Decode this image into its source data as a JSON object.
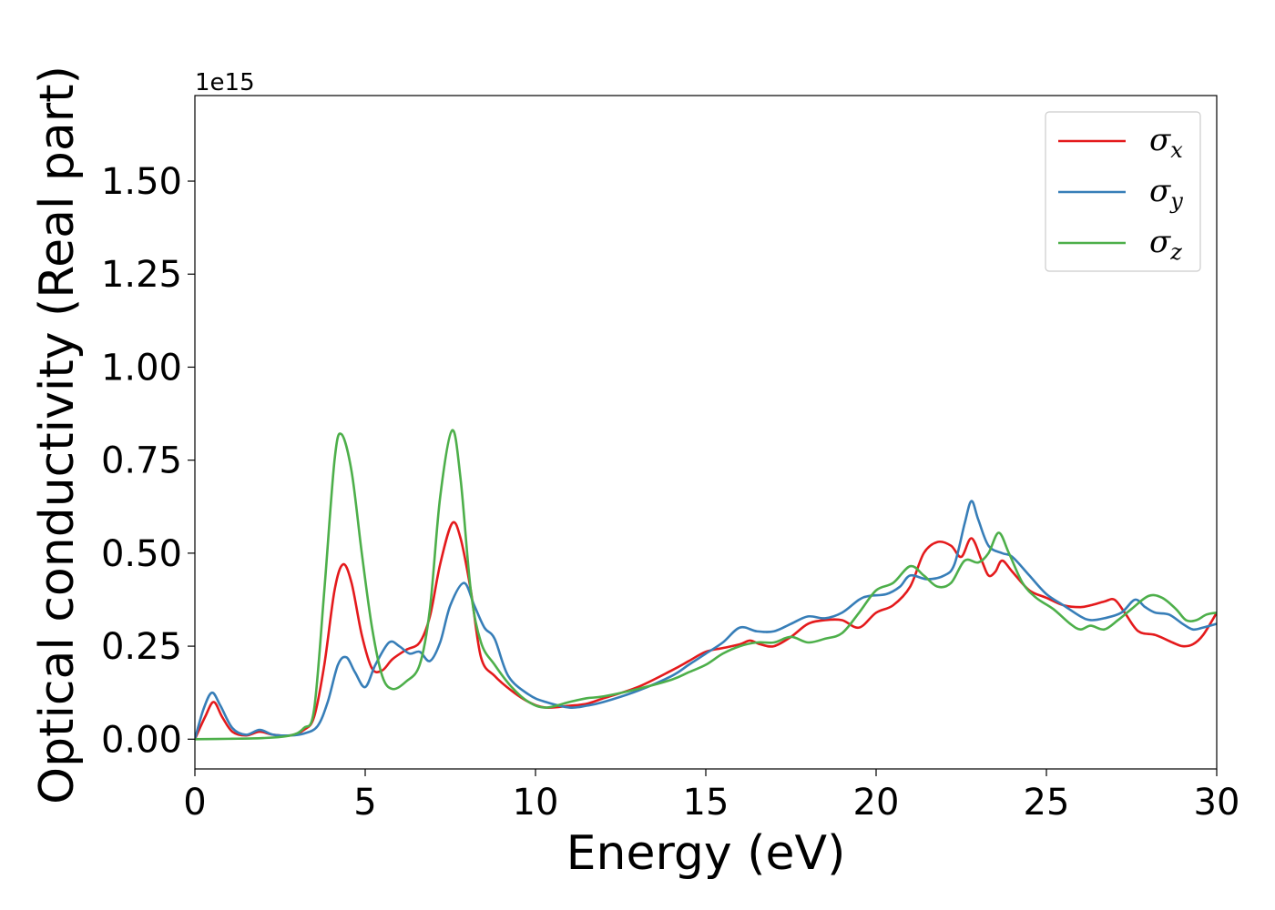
{
  "chart_data": {
    "type": "line",
    "xlabel": "Energy (eV)",
    "ylabel": "Optical conductivity (Real part)",
    "y_offset_label": "1e15",
    "y_scale_factor": 1000000000000000.0,
    "xlim": [
      0,
      30
    ],
    "ylim": [
      -0.08,
      1.73
    ],
    "xticks": [
      0,
      5,
      10,
      15,
      20,
      25,
      30
    ],
    "xtick_labels": [
      "0",
      "5",
      "10",
      "15",
      "20",
      "25",
      "30"
    ],
    "yticks": [
      0.0,
      0.25,
      0.5,
      0.75,
      1.0,
      1.25,
      1.5
    ],
    "ytick_labels": [
      "0.00",
      "0.25",
      "0.50",
      "0.75",
      "1.00",
      "1.25",
      "1.50"
    ],
    "grid": false,
    "legend_position": "top-right",
    "series": [
      {
        "name": "σx",
        "symbol": "σ",
        "subscript": "x",
        "color": "#e41a1c",
        "points": [
          [
            0,
            0
          ],
          [
            0.3,
            0.06
          ],
          [
            0.55,
            0.1
          ],
          [
            0.8,
            0.06
          ],
          [
            1.1,
            0.02
          ],
          [
            1.5,
            0.01
          ],
          [
            1.9,
            0.02
          ],
          [
            2.3,
            0.012
          ],
          [
            2.8,
            0.01
          ],
          [
            3.2,
            0.025
          ],
          [
            3.5,
            0.06
          ],
          [
            3.8,
            0.2
          ],
          [
            4.1,
            0.4
          ],
          [
            4.35,
            0.47
          ],
          [
            4.6,
            0.42
          ],
          [
            4.9,
            0.28
          ],
          [
            5.2,
            0.19
          ],
          [
            5.5,
            0.185
          ],
          [
            5.8,
            0.215
          ],
          [
            6.2,
            0.24
          ],
          [
            6.6,
            0.26
          ],
          [
            6.9,
            0.33
          ],
          [
            7.2,
            0.47
          ],
          [
            7.55,
            0.58
          ],
          [
            7.8,
            0.54
          ],
          [
            8.1,
            0.4
          ],
          [
            8.4,
            0.22
          ],
          [
            8.8,
            0.17
          ],
          [
            9.3,
            0.13
          ],
          [
            9.8,
            0.1
          ],
          [
            10.3,
            0.085
          ],
          [
            11,
            0.09
          ],
          [
            11.5,
            0.095
          ],
          [
            12,
            0.11
          ],
          [
            13,
            0.14
          ],
          [
            14,
            0.185
          ],
          [
            14.5,
            0.21
          ],
          [
            15,
            0.235
          ],
          [
            15.5,
            0.245
          ],
          [
            16,
            0.255
          ],
          [
            16.3,
            0.265
          ],
          [
            16.6,
            0.255
          ],
          [
            17,
            0.25
          ],
          [
            17.5,
            0.275
          ],
          [
            18,
            0.31
          ],
          [
            18.5,
            0.32
          ],
          [
            19,
            0.32
          ],
          [
            19.5,
            0.3
          ],
          [
            20,
            0.34
          ],
          [
            20.5,
            0.36
          ],
          [
            21,
            0.41
          ],
          [
            21.4,
            0.5
          ],
          [
            21.8,
            0.53
          ],
          [
            22.2,
            0.52
          ],
          [
            22.5,
            0.49
          ],
          [
            22.8,
            0.54
          ],
          [
            23.1,
            0.48
          ],
          [
            23.3,
            0.44
          ],
          [
            23.5,
            0.45
          ],
          [
            23.7,
            0.48
          ],
          [
            24,
            0.45
          ],
          [
            24.5,
            0.4
          ],
          [
            25,
            0.38
          ],
          [
            25.5,
            0.36
          ],
          [
            26,
            0.355
          ],
          [
            26.3,
            0.36
          ],
          [
            26.7,
            0.37
          ],
          [
            27,
            0.375
          ],
          [
            27.3,
            0.34
          ],
          [
            27.7,
            0.29
          ],
          [
            28.2,
            0.28
          ],
          [
            28.7,
            0.26
          ],
          [
            29,
            0.25
          ],
          [
            29.3,
            0.255
          ],
          [
            29.6,
            0.28
          ],
          [
            30,
            0.34
          ]
        ]
      },
      {
        "name": "σy",
        "symbol": "σ",
        "subscript": "y",
        "color": "#377eb8",
        "points": [
          [
            0,
            0
          ],
          [
            0.25,
            0.08
          ],
          [
            0.5,
            0.125
          ],
          [
            0.75,
            0.09
          ],
          [
            1.1,
            0.03
          ],
          [
            1.5,
            0.012
          ],
          [
            1.9,
            0.025
          ],
          [
            2.3,
            0.012
          ],
          [
            2.8,
            0.01
          ],
          [
            3.2,
            0.015
          ],
          [
            3.6,
            0.035
          ],
          [
            3.9,
            0.1
          ],
          [
            4.2,
            0.2
          ],
          [
            4.45,
            0.22
          ],
          [
            4.7,
            0.18
          ],
          [
            5,
            0.14
          ],
          [
            5.3,
            0.2
          ],
          [
            5.7,
            0.26
          ],
          [
            6,
            0.25
          ],
          [
            6.3,
            0.23
          ],
          [
            6.6,
            0.235
          ],
          [
            6.9,
            0.21
          ],
          [
            7.2,
            0.26
          ],
          [
            7.5,
            0.36
          ],
          [
            7.9,
            0.42
          ],
          [
            8.2,
            0.36
          ],
          [
            8.5,
            0.3
          ],
          [
            8.8,
            0.27
          ],
          [
            9.2,
            0.17
          ],
          [
            9.8,
            0.12
          ],
          [
            10.3,
            0.1
          ],
          [
            11,
            0.085
          ],
          [
            11.5,
            0.09
          ],
          [
            12,
            0.1
          ],
          [
            13,
            0.13
          ],
          [
            14,
            0.17
          ],
          [
            14.5,
            0.2
          ],
          [
            15,
            0.23
          ],
          [
            15.5,
            0.26
          ],
          [
            16,
            0.3
          ],
          [
            16.5,
            0.29
          ],
          [
            17,
            0.29
          ],
          [
            17.5,
            0.31
          ],
          [
            18,
            0.33
          ],
          [
            18.5,
            0.325
          ],
          [
            19,
            0.34
          ],
          [
            19.5,
            0.375
          ],
          [
            19.8,
            0.385
          ],
          [
            20.3,
            0.39
          ],
          [
            20.7,
            0.41
          ],
          [
            21,
            0.44
          ],
          [
            21.5,
            0.43
          ],
          [
            22,
            0.44
          ],
          [
            22.3,
            0.47
          ],
          [
            22.6,
            0.58
          ],
          [
            22.8,
            0.64
          ],
          [
            23,
            0.59
          ],
          [
            23.3,
            0.52
          ],
          [
            23.7,
            0.5
          ],
          [
            24,
            0.49
          ],
          [
            24.5,
            0.44
          ],
          [
            25,
            0.39
          ],
          [
            25.5,
            0.36
          ],
          [
            26,
            0.33
          ],
          [
            26.3,
            0.32
          ],
          [
            26.7,
            0.325
          ],
          [
            27.2,
            0.34
          ],
          [
            27.6,
            0.375
          ],
          [
            27.9,
            0.355
          ],
          [
            28.2,
            0.34
          ],
          [
            28.6,
            0.335
          ],
          [
            29,
            0.31
          ],
          [
            29.3,
            0.295
          ],
          [
            29.6,
            0.3
          ],
          [
            30,
            0.31
          ]
        ]
      },
      {
        "name": "σz",
        "symbol": "σ",
        "subscript": "z",
        "color": "#4daf4a",
        "points": [
          [
            0,
            0
          ],
          [
            1,
            0.001
          ],
          [
            2,
            0.003
          ],
          [
            2.8,
            0.01
          ],
          [
            3.2,
            0.03
          ],
          [
            3.5,
            0.08
          ],
          [
            3.8,
            0.4
          ],
          [
            4.1,
            0.75
          ],
          [
            4.3,
            0.82
          ],
          [
            4.6,
            0.72
          ],
          [
            4.9,
            0.5
          ],
          [
            5.2,
            0.3
          ],
          [
            5.5,
            0.17
          ],
          [
            5.8,
            0.135
          ],
          [
            6.2,
            0.155
          ],
          [
            6.6,
            0.2
          ],
          [
            6.9,
            0.35
          ],
          [
            7.2,
            0.65
          ],
          [
            7.55,
            0.83
          ],
          [
            7.8,
            0.7
          ],
          [
            8.1,
            0.4
          ],
          [
            8.4,
            0.26
          ],
          [
            8.8,
            0.2
          ],
          [
            9.3,
            0.14
          ],
          [
            9.8,
            0.1
          ],
          [
            10.3,
            0.085
          ],
          [
            11,
            0.1
          ],
          [
            11.5,
            0.11
          ],
          [
            12,
            0.115
          ],
          [
            13,
            0.135
          ],
          [
            14,
            0.16
          ],
          [
            14.5,
            0.18
          ],
          [
            15,
            0.2
          ],
          [
            15.5,
            0.23
          ],
          [
            16,
            0.25
          ],
          [
            16.5,
            0.26
          ],
          [
            17,
            0.26
          ],
          [
            17.5,
            0.275
          ],
          [
            18,
            0.26
          ],
          [
            18.5,
            0.27
          ],
          [
            19,
            0.285
          ],
          [
            19.5,
            0.34
          ],
          [
            20,
            0.4
          ],
          [
            20.5,
            0.42
          ],
          [
            21,
            0.465
          ],
          [
            21.4,
            0.44
          ],
          [
            21.8,
            0.41
          ],
          [
            22.2,
            0.42
          ],
          [
            22.6,
            0.48
          ],
          [
            23,
            0.475
          ],
          [
            23.3,
            0.5
          ],
          [
            23.6,
            0.555
          ],
          [
            23.9,
            0.5
          ],
          [
            24.3,
            0.42
          ],
          [
            24.7,
            0.38
          ],
          [
            25.2,
            0.35
          ],
          [
            25.7,
            0.31
          ],
          [
            26,
            0.295
          ],
          [
            26.3,
            0.305
          ],
          [
            26.7,
            0.295
          ],
          [
            27.1,
            0.32
          ],
          [
            27.5,
            0.35
          ],
          [
            28,
            0.385
          ],
          [
            28.4,
            0.38
          ],
          [
            28.8,
            0.35
          ],
          [
            29.1,
            0.32
          ],
          [
            29.4,
            0.32
          ],
          [
            29.7,
            0.335
          ],
          [
            30,
            0.34
          ]
        ]
      }
    ]
  }
}
